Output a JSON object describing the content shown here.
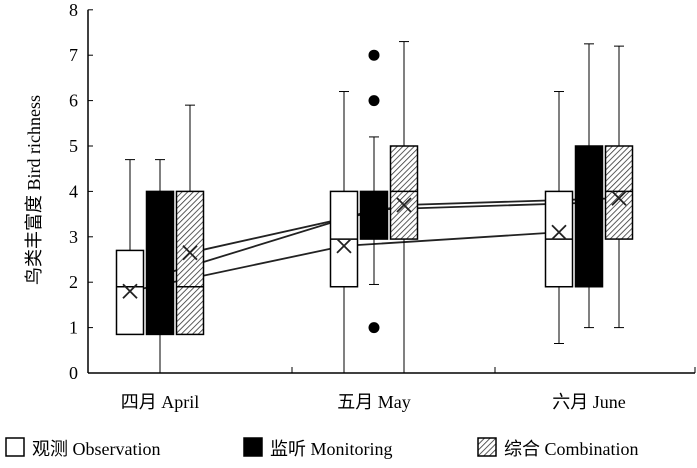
{
  "chart_data": {
    "type": "box",
    "ylabel": "鸟类丰富度 Bird richness",
    "ylim": [
      0,
      8
    ],
    "yticks": [
      0,
      1,
      2,
      3,
      4,
      5,
      6,
      7,
      8
    ],
    "categories": [
      "四月 April",
      "五月 May",
      "六月 June"
    ],
    "series": [
      {
        "name": "观测 Observation",
        "fill": "white",
        "boxes": [
          {
            "min": 0.85,
            "q1": 0.85,
            "median": 1.9,
            "q3": 2.7,
            "max": 4.7,
            "mean": 1.8,
            "outliers": []
          },
          {
            "min": 0,
            "q1": 1.9,
            "median": 2.95,
            "q3": 4,
            "max": 6.2,
            "mean": 2.8,
            "outliers": []
          },
          {
            "min": 0.65,
            "q1": 1.9,
            "median": 2.95,
            "q3": 4,
            "max": 6.2,
            "mean": 3.1,
            "outliers": []
          }
        ]
      },
      {
        "name": "监听 Monitoring",
        "fill": "black",
        "boxes": [
          {
            "min": 0,
            "q1": 0.85,
            "median": 2.0,
            "q3": 4,
            "max": 4.7,
            "mean": 2.15,
            "outliers": []
          },
          {
            "min": 1.95,
            "q1": 2.95,
            "median": 3.5,
            "q3": 4,
            "max": 5.2,
            "mean": 3.6,
            "outliers": [
              7,
              6,
              1
            ]
          },
          {
            "min": 1,
            "q1": 1.9,
            "median": 3.7,
            "q3": 5,
            "max": 7.25,
            "mean": 3.75,
            "outliers": []
          }
        ]
      },
      {
        "name": "综合 Combination",
        "fill": "hatched",
        "boxes": [
          {
            "min": 0.85,
            "q1": 0.85,
            "median": 1.9,
            "q3": 4,
            "max": 5.9,
            "mean": 2.65,
            "outliers": []
          },
          {
            "min": 0,
            "q1": 2.95,
            "median": 4,
            "q3": 5,
            "max": 7.3,
            "mean": 3.7,
            "outliers": []
          },
          {
            "min": 1,
            "q1": 2.95,
            "median": 4,
            "q3": 5,
            "max": 7.2,
            "mean": 3.85,
            "outliers": []
          }
        ]
      }
    ]
  }
}
